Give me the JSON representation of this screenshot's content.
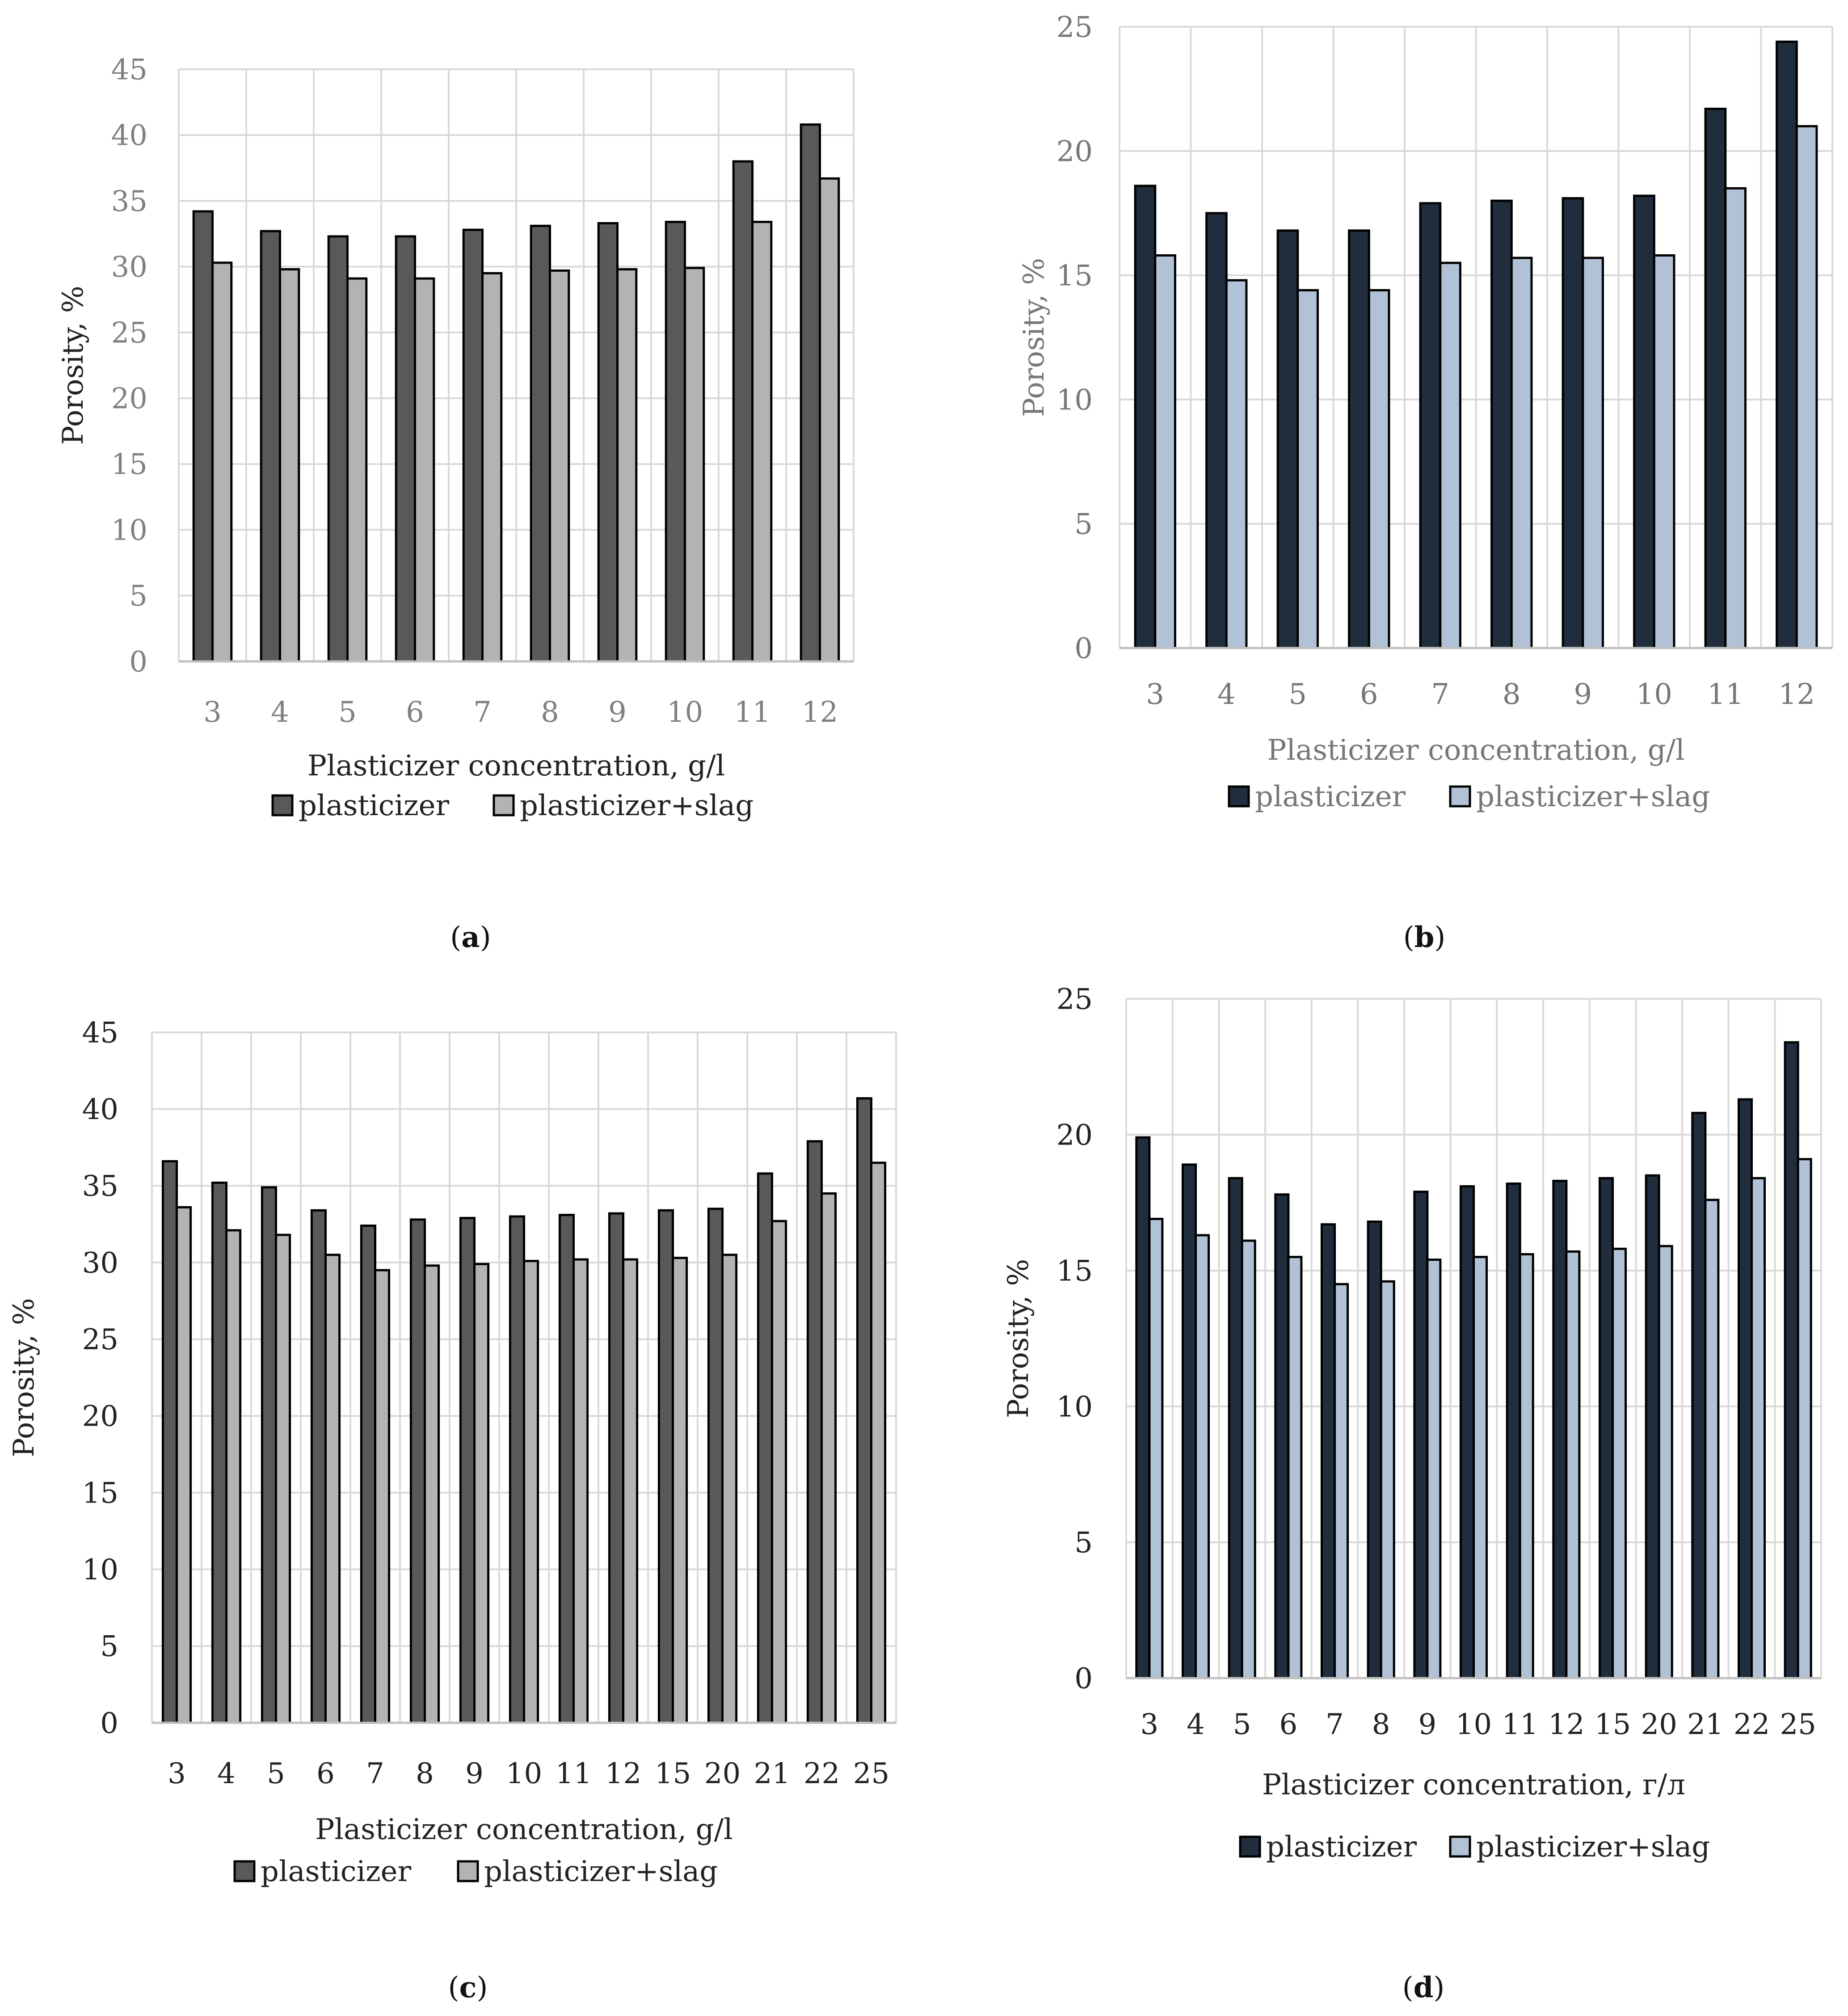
{
  "figure": {
    "captions": [
      {
        "letter": "a",
        "open": "(",
        "close": ")"
      },
      {
        "letter": "b",
        "open": "(",
        "close": ")"
      },
      {
        "letter": "c",
        "open": "(",
        "close": ")"
      },
      {
        "letter": "d",
        "open": "(",
        "close": ")"
      }
    ]
  },
  "chart_data": [
    {
      "id": "a",
      "type": "bar",
      "title": "",
      "xlabel": "Plasticizer concentration, g/l",
      "ylabel": "Porosity, %",
      "ylim": [
        0,
        45
      ],
      "yticks": [
        0,
        5,
        10,
        15,
        20,
        25,
        30,
        35,
        40,
        45
      ],
      "grid": true,
      "legend_position": "bottom",
      "categories": [
        "3",
        "4",
        "5",
        "6",
        "7",
        "8",
        "9",
        "10",
        "11",
        "12"
      ],
      "series": [
        {
          "name": "plasticizer",
          "color": "#595959",
          "values": [
            34.2,
            32.7,
            32.3,
            32.3,
            32.8,
            33.1,
            33.3,
            33.4,
            38.0,
            40.8
          ]
        },
        {
          "name": "plasticizer+slag",
          "color": "#b3b3b3",
          "values": [
            30.3,
            29.8,
            29.1,
            29.1,
            29.5,
            29.7,
            29.8,
            29.9,
            33.4,
            36.7
          ]
        }
      ],
      "tick_color": "#808080",
      "axis_title_color": "#222222"
    },
    {
      "id": "b",
      "type": "bar",
      "title": "",
      "xlabel": "Plasticizer concentration, g/l",
      "ylabel": "Porosity, %",
      "ylim": [
        0,
        25
      ],
      "yticks": [
        0,
        5,
        10,
        15,
        20,
        25
      ],
      "grid": true,
      "legend_position": "bottom",
      "categories": [
        "3",
        "4",
        "5",
        "6",
        "7",
        "8",
        "9",
        "10",
        "11",
        "12"
      ],
      "series": [
        {
          "name": "plasticizer",
          "color": "#1f2d3d",
          "values": [
            18.6,
            17.5,
            16.8,
            16.8,
            17.9,
            18.0,
            18.1,
            18.2,
            21.7,
            24.4
          ]
        },
        {
          "name": "plasticizer+slag",
          "color": "#b2c2d6",
          "values": [
            15.8,
            14.8,
            14.4,
            14.4,
            15.5,
            15.7,
            15.7,
            15.8,
            18.5,
            21.0
          ]
        }
      ],
      "tick_color": "#777777",
      "axis_title_color": "#777777"
    },
    {
      "id": "c",
      "type": "bar",
      "title": "",
      "xlabel": "Plasticizer concentration, g/l",
      "ylabel": "Porosity, %",
      "ylim": [
        0,
        45
      ],
      "yticks": [
        0,
        5,
        10,
        15,
        20,
        25,
        30,
        35,
        40,
        45
      ],
      "grid": true,
      "legend_position": "bottom",
      "categories": [
        "3",
        "4",
        "5",
        "6",
        "7",
        "8",
        "9",
        "10",
        "11",
        "12",
        "15",
        "20",
        "21",
        "22",
        "25"
      ],
      "series": [
        {
          "name": "plasticizer",
          "color": "#595959",
          "values": [
            36.6,
            35.2,
            34.9,
            33.4,
            32.4,
            32.8,
            32.9,
            33.0,
            33.1,
            33.2,
            33.4,
            33.5,
            35.8,
            37.9,
            40.7
          ]
        },
        {
          "name": "plasticizer+slag",
          "color": "#b3b3b3",
          "values": [
            33.6,
            32.1,
            31.8,
            30.5,
            29.5,
            29.8,
            29.9,
            30.1,
            30.2,
            30.2,
            30.3,
            30.5,
            32.7,
            34.5,
            36.5
          ]
        }
      ],
      "tick_color": "#222222",
      "axis_title_color": "#222222"
    },
    {
      "id": "d",
      "type": "bar",
      "title": "",
      "xlabel": "Plasticizer concentration, г/л",
      "ylabel": "Porosity, %",
      "ylim": [
        0,
        25
      ],
      "yticks": [
        0,
        5,
        10,
        15,
        20,
        25
      ],
      "grid": true,
      "legend_position": "bottom",
      "categories": [
        "3",
        "4",
        "5",
        "6",
        "7",
        "8",
        "9",
        "10",
        "11",
        "12",
        "15",
        "20",
        "21",
        "22",
        "25"
      ],
      "series": [
        {
          "name": "plasticizer",
          "color": "#1f2d3d",
          "values": [
            19.9,
            18.9,
            18.4,
            17.8,
            16.7,
            16.8,
            17.9,
            18.1,
            18.2,
            18.3,
            18.4,
            18.5,
            20.8,
            21.3,
            23.4
          ]
        },
        {
          "name": "plasticizer+slag",
          "color": "#b2c2d6",
          "values": [
            16.9,
            16.3,
            16.1,
            15.5,
            14.5,
            14.6,
            15.4,
            15.5,
            15.6,
            15.7,
            15.8,
            15.9,
            17.6,
            18.4,
            19.1
          ]
        }
      ],
      "tick_color": "#222222",
      "axis_title_color": "#222222"
    }
  ]
}
